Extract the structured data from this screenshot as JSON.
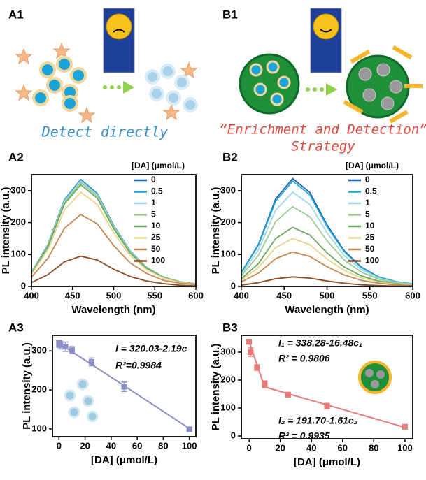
{
  "illustrations": [
    {
      "panel": "A1",
      "caption": [
        "Detect directly"
      ]
    },
    {
      "panel": "B1",
      "caption": [
        "“Enrichment and Detection”",
        "Strategy"
      ]
    }
  ],
  "chart_data": [
    {
      "type": "line",
      "panel": "A2",
      "x_label": "Wavelength (nm)",
      "y_label": "PL intensity (a.u.)",
      "legend_title": "[DA] (μmol/L)",
      "legend": "upper right",
      "x": [
        400,
        420,
        440,
        460,
        480,
        500,
        520,
        540,
        560,
        580,
        600
      ],
      "xlim": [
        400,
        600
      ],
      "xticks": [
        400,
        450,
        500,
        550,
        600
      ],
      "ylim": [
        0,
        350
      ],
      "yticks": [
        0,
        100,
        200,
        300
      ],
      "series": [
        {
          "name": "0",
          "color": "#1565c0",
          "values": [
            44,
            131,
            271,
            335,
            291,
            191,
            111,
            60,
            30,
            15,
            8
          ]
        },
        {
          "name": "0.5",
          "color": "#29a3c9",
          "values": [
            43,
            130,
            270,
            333,
            290,
            190,
            110,
            60,
            30,
            15,
            8
          ]
        },
        {
          "name": "1",
          "color": "#9fd8ec",
          "values": [
            43,
            129,
            267,
            330,
            287,
            188,
            109,
            59,
            30,
            15,
            8
          ]
        },
        {
          "name": "5",
          "color": "#9ccc8f",
          "values": [
            42,
            127,
            263,
            325,
            283,
            185,
            107,
            59,
            29,
            15,
            8
          ]
        },
        {
          "name": "10",
          "color": "#6aa860",
          "values": [
            41,
            124,
            258,
            318,
            277,
            181,
            105,
            57,
            29,
            14,
            8
          ]
        },
        {
          "name": "25",
          "color": "#e8d48a",
          "values": [
            38,
            115,
            239,
            295,
            257,
            168,
            97,
            53,
            27,
            13,
            7
          ]
        },
        {
          "name": "50",
          "color": "#c8864a",
          "values": [
            29,
            88,
            182,
            225,
            196,
            128,
            74,
            41,
            20,
            10,
            6
          ]
        },
        {
          "name": "100",
          "color": "#8b4a20",
          "values": [
            12,
            37,
            77,
            95,
            83,
            54,
            31,
            17,
            9,
            4,
            2
          ]
        }
      ]
    },
    {
      "type": "line",
      "panel": "B2",
      "x_label": "Wavelength (nm)",
      "y_label": "PL intensity (a.u.)",
      "legend_title": "[DA] (μmol/L)",
      "legend": "upper right",
      "x": [
        400,
        420,
        440,
        460,
        480,
        500,
        520,
        540,
        560,
        580,
        600
      ],
      "xlim": [
        400,
        600
      ],
      "xticks": [
        400,
        450,
        500,
        550,
        600
      ],
      "ylim": [
        0,
        350
      ],
      "yticks": [
        0,
        100,
        200,
        300
      ],
      "series": [
        {
          "name": "0",
          "color": "#1565c0",
          "values": [
            44,
            132,
            274,
            338,
            294,
            193,
            112,
            61,
            30,
            15,
            8
          ]
        },
        {
          "name": "0.5",
          "color": "#29a3c9",
          "values": [
            43,
            129,
            267,
            330,
            287,
            188,
            109,
            59,
            30,
            15,
            8
          ]
        },
        {
          "name": "1",
          "color": "#9fd8ec",
          "values": [
            38,
            115,
            239,
            295,
            257,
            168,
            97,
            53,
            27,
            13,
            7
          ]
        },
        {
          "name": "5",
          "color": "#9ccc8f",
          "values": [
            33,
            98,
            203,
            250,
            218,
            143,
            83,
            45,
            23,
            11,
            6
          ]
        },
        {
          "name": "10",
          "color": "#6aa860",
          "values": [
            24,
            72,
            150,
            185,
            161,
            105,
            61,
            33,
            17,
            8,
            5
          ]
        },
        {
          "name": "25",
          "color": "#e8d48a",
          "values": [
            20,
            59,
            122,
            150,
            131,
            86,
            50,
            27,
            14,
            7,
            4
          ]
        },
        {
          "name": "50",
          "color": "#c8864a",
          "values": [
            14,
            42,
            87,
            108,
            94,
            62,
            36,
            19,
            10,
            5,
            3
          ]
        },
        {
          "name": "100",
          "color": "#8b4a20",
          "values": [
            4,
            12,
            24,
            30,
            26,
            17,
            10,
            5,
            3,
            1,
            1
          ]
        }
      ]
    },
    {
      "type": "scatter",
      "panel": "A3",
      "x_label": "[DA] (μmol/L)",
      "y_label": "PL intensity (a.u.)",
      "color": "#8a8fc8",
      "x": [
        0,
        1,
        5,
        10,
        25,
        50,
        100
      ],
      "values": [
        318,
        315,
        311,
        302,
        272,
        208,
        99
      ],
      "errors": [
        8,
        10,
        12,
        9,
        10,
        12,
        5
      ],
      "fits": [
        {
          "x": [
            0,
            100
          ],
          "values": [
            320.03,
            101.03
          ]
        }
      ],
      "annotations": [
        "I = 320.03-2.19c",
        "R²=0.9984"
      ],
      "xlim": [
        -5,
        105
      ],
      "xticks": [
        0,
        20,
        40,
        60,
        80,
        100
      ],
      "ylim": [
        80,
        340
      ],
      "yticks": [
        100,
        200,
        300
      ]
    },
    {
      "type": "scatter",
      "panel": "B3",
      "x_label": "[DA] (μmol/L)",
      "y_label": "PL intensity (a.u.)",
      "color": "#e97a7a",
      "x": [
        0,
        1,
        5,
        10,
        25,
        50,
        100
      ],
      "values": [
        337,
        300,
        245,
        185,
        148,
        107,
        33
      ],
      "errors": [
        8,
        15,
        10,
        12,
        8,
        10,
        8
      ],
      "fits": [
        {
          "x": [
            0,
            10
          ],
          "values": [
            338.28,
            173.48
          ]
        },
        {
          "x": [
            10,
            100
          ],
          "values": [
            175.6,
            30.7
          ]
        }
      ],
      "annotations": [
        "I₁ = 338.28-16.48c₁",
        "R² = 0.9806",
        "I₂ = 191.70-1.61c₂",
        "R² = 0.9935"
      ],
      "xlim": [
        -5,
        105
      ],
      "xticks": [
        0,
        20,
        40,
        60,
        80,
        100
      ],
      "ylim": [
        -10,
        360
      ],
      "yticks": [
        0,
        100,
        200,
        300
      ]
    }
  ]
}
